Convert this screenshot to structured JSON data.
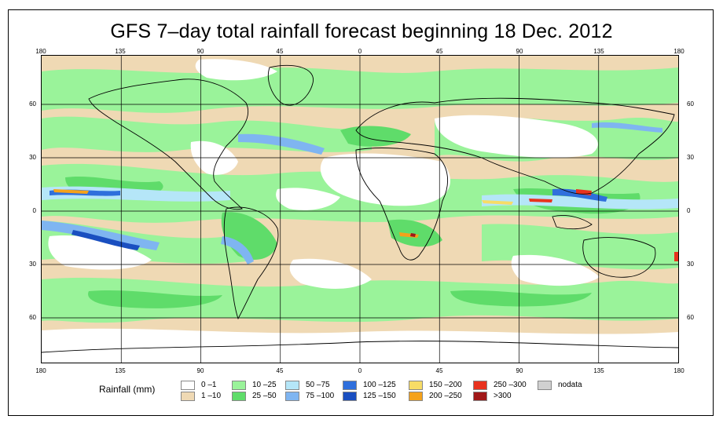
{
  "title": "GFS 7–day total rainfall forecast beginning 18 Dec. 2012",
  "axes": {
    "lon_labels": [
      "180",
      "135",
      "90",
      "45",
      "0",
      "45",
      "90",
      "135",
      "180"
    ],
    "lat_labels": [
      "60",
      "30",
      "0",
      "30",
      "60"
    ]
  },
  "legend": {
    "title": "Rainfall (mm)",
    "entries": [
      {
        "label": "0 –1",
        "color": "#ffffff"
      },
      {
        "label": "1 –10",
        "color": "#efd9b4"
      },
      {
        "label": "10 –25",
        "color": "#9af39a"
      },
      {
        "label": "25 –50",
        "color": "#5fdc6a"
      },
      {
        "label": "50 –75",
        "color": "#b5e6f8"
      },
      {
        "label": "75 –100",
        "color": "#7fb5f1"
      },
      {
        "label": "100 –125",
        "color": "#2f6fdc"
      },
      {
        "label": "125 –150",
        "color": "#1a4fc0"
      },
      {
        "label": "150 –200",
        "color": "#f7dc66"
      },
      {
        "label": "200 –250",
        "color": "#f5a21a"
      },
      {
        "label": "250 –300",
        "color": "#e8321e"
      },
      {
        "label": ">300",
        "color": "#a01818"
      },
      {
        "label": "nodata",
        "color": "#d0d0d0"
      }
    ]
  },
  "colors": {
    "background": "#ffffff",
    "grid": "#000000",
    "coast": "#000000"
  }
}
